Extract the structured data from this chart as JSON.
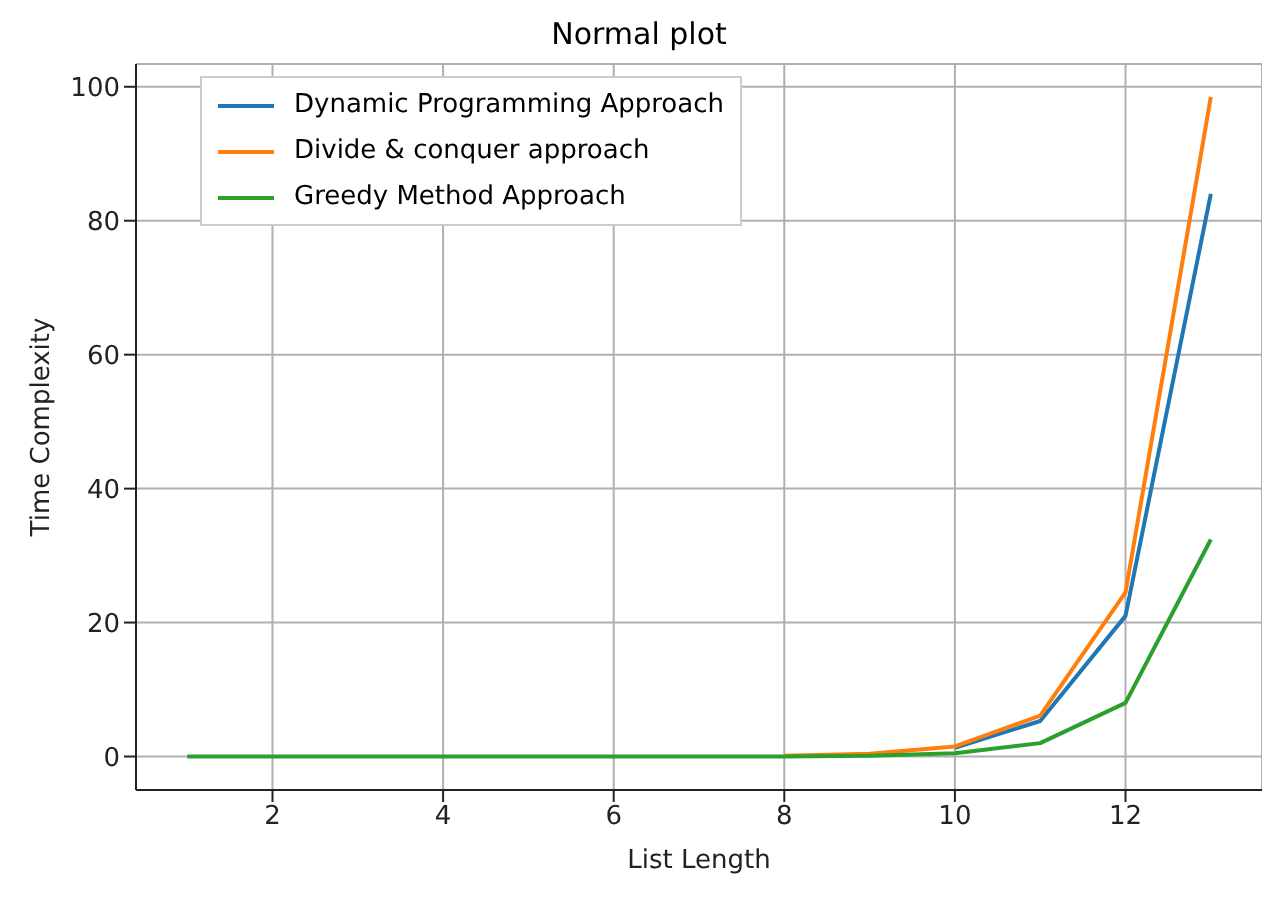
{
  "chart_data": {
    "type": "line",
    "title": "Normal plot",
    "xlabel": "List Length",
    "ylabel": "Time Complexity",
    "x": [
      1,
      2,
      3,
      4,
      5,
      6,
      7,
      8,
      9,
      10,
      11,
      12,
      13
    ],
    "series": [
      {
        "name": "Dynamic Programming Approach",
        "color": "#1f77b4",
        "values": [
          null,
          null,
          null,
          null,
          null,
          null,
          null,
          null,
          null,
          1.3,
          5.3,
          21,
          84
        ]
      },
      {
        "name": "Divide & conquer approach",
        "color": "#ff7f0e",
        "values": [
          null,
          null,
          null,
          null,
          null,
          null,
          null,
          0.1,
          0.4,
          1.5,
          6.1,
          24.5,
          98.5
        ]
      },
      {
        "name": "Greedy Method Approach",
        "color": "#2ca02c",
        "values": [
          0,
          0,
          0,
          0,
          0,
          0,
          0,
          0,
          0.1,
          0.5,
          2,
          8,
          32.4
        ]
      }
    ],
    "xlim": [
      0.4,
      13.6
    ],
    "xticks": [
      2,
      4,
      6,
      8,
      10,
      12
    ],
    "ylim": [
      -5,
      103.4
    ],
    "yticks": [
      0,
      20,
      40,
      60,
      80,
      100
    ],
    "grid": true,
    "legend": "top left",
    "marker": "none",
    "line_style": "solid"
  }
}
